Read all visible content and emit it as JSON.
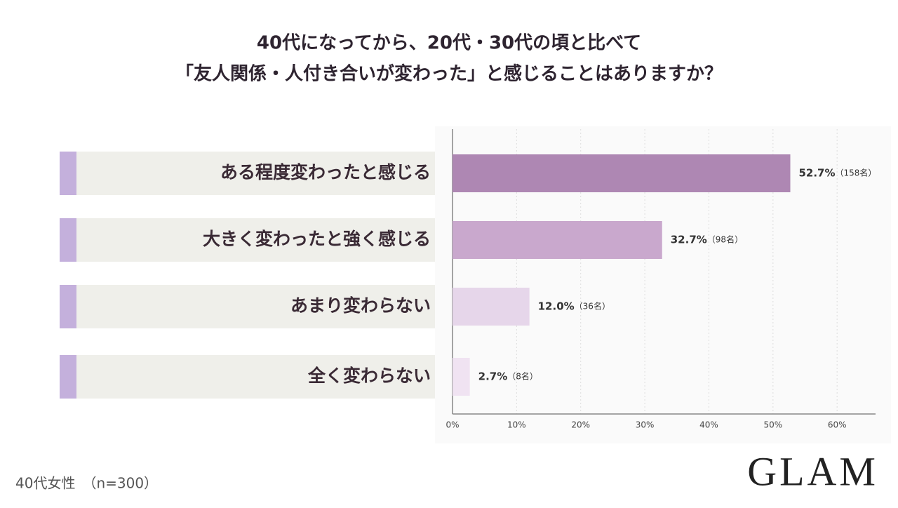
{
  "chart_data": {
    "type": "hbar",
    "title_lines": [
      "40代になってから、20代・30代の頃と比べて",
      "「友人関係・人付き合いが変わった」と感じることはありますか？"
    ],
    "categories": [
      "ある程度変わったと感じる",
      "大きく変わったと強く感じる",
      "あまり変わらない",
      "全く変わらない"
    ],
    "values": [
      52.7,
      32.7,
      12.0,
      2.7
    ],
    "value_labels": [
      "52.7%",
      "32.7%",
      "12.0%",
      "2.7%"
    ],
    "count_labels": [
      "（158名）",
      "（98名）",
      "（36名）",
      "（8名）"
    ],
    "colors": [
      "#ae87b3",
      "#c9a8cd",
      "#e6d6ea",
      "#f0e3f2"
    ],
    "xlim": [
      0,
      66
    ],
    "xticks": [
      {
        "value": 0,
        "label": "0%"
      },
      {
        "value": 10,
        "label": "10%"
      },
      {
        "value": 20,
        "label": "20%"
      },
      {
        "value": 30,
        "label": "30%"
      },
      {
        "value": 40,
        "label": "40%"
      },
      {
        "value": 50,
        "label": "50%"
      },
      {
        "value": 60,
        "label": "60%"
      }
    ],
    "grid": true,
    "footnote": "40代女性　（n=300）",
    "logo": "GLAM"
  }
}
